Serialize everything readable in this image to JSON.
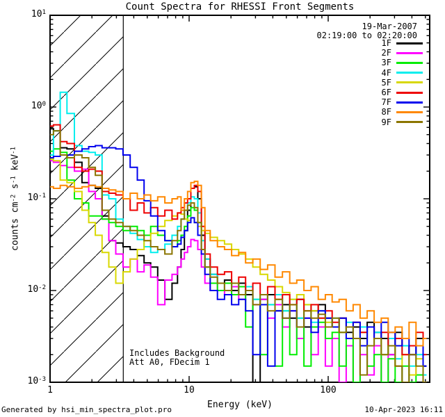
{
  "header": {
    "title": "Count Spectra for RHESSI Front Segments",
    "date": "19-Mar-2007",
    "time_range": "02:19:00 to 02:20:00"
  },
  "legend": {
    "items": [
      {
        "label": "1F",
        "color": "#000000"
      },
      {
        "label": "2F",
        "color": "#ff00ff"
      },
      {
        "label": "3F",
        "color": "#00ee00"
      },
      {
        "label": "4F",
        "color": "#00eeee"
      },
      {
        "label": "5F",
        "color": "#d8d800"
      },
      {
        "label": "6F",
        "color": "#ee0000"
      },
      {
        "label": "7F",
        "color": "#0000ee"
      },
      {
        "label": "8F",
        "color": "#ff8800"
      },
      {
        "label": "9F",
        "color": "#8b7500"
      }
    ]
  },
  "axes": {
    "x": {
      "label": "Energy (keV)",
      "tick_labels": [
        "1",
        "10",
        "100"
      ],
      "tick_values": [
        1,
        10,
        100
      ]
    },
    "y": {
      "tick_exponents": [
        1,
        0,
        -1,
        -2,
        -3
      ],
      "label_parts": {
        "prefix": "counts cm",
        "sup1": "-2",
        "mid1": " s",
        "sup2": "-1",
        "mid2": " keV",
        "sup3": "-1"
      }
    }
  },
  "annotations": {
    "line1": "Includes Background",
    "line2": "Att A0, FDecim 1"
  },
  "footer": {
    "left": "Generated by hsi_min_spectra_plot.pro",
    "right": "10-Apr-2023 16:11"
  },
  "chart_data": {
    "type": "line",
    "scale": "log-log",
    "title": "Count Spectra for RHESSI Front Segments",
    "xlabel": "Energy (keV)",
    "ylabel": "counts cm^-2 s^-1 keV^-1",
    "xlim": [
      1,
      537
    ],
    "ylim": [
      0.001,
      10
    ],
    "grid": false,
    "legend_position": "top-right",
    "hatch_region": {
      "x_min": 1,
      "x_max": 3.36
    },
    "x": [
      1.0,
      1.12,
      1.25,
      1.4,
      1.6,
      1.8,
      2.0,
      2.24,
      2.5,
      2.8,
      3.15,
      3.55,
      4.0,
      4.5,
      5.0,
      5.6,
      6.3,
      7.1,
      8.0,
      8.5,
      9.0,
      9.5,
      10.0,
      10.6,
      11.2,
      11.9,
      12.6,
      13.4,
      15,
      17,
      19,
      21.5,
      24,
      27,
      30.5,
      34.5,
      39,
      44,
      50,
      56,
      63,
      71,
      80,
      90,
      101,
      113,
      127,
      143,
      160,
      180,
      202,
      227,
      255,
      286,
      321,
      360,
      404,
      454,
      510
    ],
    "series": [
      {
        "name": "1F",
        "color": "#000000",
        "values": [
          0.58,
          0.55,
          0.36,
          0.35,
          0.25,
          0.15,
          0.14,
          0.13,
          0.065,
          0.035,
          0.033,
          0.03,
          0.028,
          0.024,
          0.02,
          0.018,
          0.013,
          0.008,
          0.012,
          0.018,
          0.028,
          0.045,
          0.075,
          0.13,
          0.135,
          0.1,
          0.04,
          0.022,
          0.015,
          0.012,
          0.013,
          0.01,
          0.012,
          0.009,
          0.001,
          0.008,
          0.009,
          0.006,
          0.007,
          0.005,
          0.008,
          0.004,
          0.006,
          0.007,
          0.005,
          0.004,
          0.005,
          0.0035,
          0.004,
          0.003,
          0.0045,
          0.0035,
          0.003,
          0.002,
          0.0035,
          0.0025,
          0.002,
          0.003,
          0.0015
        ]
      },
      {
        "name": "2F",
        "color": "#ff00ff",
        "values": [
          0.26,
          0.25,
          0.23,
          0.22,
          0.2,
          0.21,
          0.12,
          0.1,
          0.06,
          0.035,
          0.025,
          0.018,
          0.022,
          0.016,
          0.019,
          0.014,
          0.007,
          0.013,
          0.015,
          0.018,
          0.022,
          0.026,
          0.03,
          0.036,
          0.035,
          0.028,
          0.018,
          0.012,
          0.01,
          0.012,
          0.009,
          0.011,
          0.008,
          0.01,
          0.007,
          0.008,
          0.005,
          0.007,
          0.004,
          0.006,
          0.003,
          0.005,
          0.002,
          0.004,
          0.0015,
          0.003,
          0.001,
          0.0025,
          0.001,
          0.002,
          0.0012,
          0.0025,
          0.001,
          0.002,
          0.0015,
          0.001,
          0.002,
          0.0012,
          0.001
        ]
      },
      {
        "name": "3F",
        "color": "#00ee00",
        "values": [
          0.33,
          0.35,
          0.32,
          0.16,
          0.1,
          0.09,
          0.065,
          0.065,
          0.06,
          0.055,
          0.05,
          0.045,
          0.05,
          0.045,
          0.04,
          0.05,
          0.04,
          0.035,
          0.03,
          0.035,
          0.04,
          0.05,
          0.065,
          0.08,
          0.075,
          0.055,
          0.028,
          0.018,
          0.012,
          0.01,
          0.012,
          0.009,
          0.011,
          0.004,
          0.008,
          0.002,
          0.007,
          0.0015,
          0.006,
          0.002,
          0.005,
          0.0015,
          0.004,
          0.0045,
          0.003,
          0.0035,
          0.0015,
          0.003,
          0.001,
          0.0025,
          0.0015,
          0.002,
          0.001,
          0.0018,
          0.001,
          0.0015,
          0.001,
          0.0012,
          0.001
        ]
      },
      {
        "name": "4F",
        "color": "#00eeee",
        "values": [
          0.3,
          0.55,
          1.45,
          0.85,
          0.38,
          0.33,
          0.32,
          0.3,
          0.11,
          0.1,
          0.06,
          0.05,
          0.042,
          0.036,
          0.03,
          0.026,
          0.028,
          0.032,
          0.04,
          0.05,
          0.06,
          0.075,
          0.09,
          0.105,
          0.1,
          0.07,
          0.035,
          0.022,
          0.015,
          0.012,
          0.01,
          0.012,
          0.009,
          0.011,
          0.008,
          0.009,
          0.007,
          0.009,
          0.006,
          0.008,
          0.005,
          0.007,
          0.0045,
          0.006,
          0.004,
          0.005,
          0.0035,
          0.0045,
          0.003,
          0.004,
          0.0025,
          0.0035,
          0.002,
          0.003,
          0.0018,
          0.0025,
          0.0015,
          0.002,
          0.0012
        ]
      },
      {
        "name": "5F",
        "color": "#d8d800",
        "values": [
          0.27,
          0.26,
          0.16,
          0.15,
          0.12,
          0.075,
          0.055,
          0.04,
          0.026,
          0.018,
          0.012,
          0.016,
          0.022,
          0.028,
          0.035,
          0.042,
          0.05,
          0.058,
          0.065,
          0.07,
          0.068,
          0.06,
          0.058,
          0.062,
          0.055,
          0.05,
          0.045,
          0.042,
          0.038,
          0.035,
          0.032,
          0.028,
          0.025,
          0.022,
          0.018,
          0.015,
          0.013,
          0.011,
          0.0095,
          0.008,
          0.009,
          0.007,
          0.006,
          0.005,
          0.0045,
          0.004,
          0.0035,
          0.004,
          0.003,
          0.0035,
          0.0025,
          0.003,
          0.002,
          0.0025,
          0.0015,
          0.002,
          0.0012,
          0.0018,
          0.001
        ]
      },
      {
        "name": "6F",
        "color": "#ee0000",
        "values": [
          0.62,
          0.64,
          0.42,
          0.4,
          0.22,
          0.2,
          0.21,
          0.2,
          0.12,
          0.115,
          0.11,
          0.1,
          0.075,
          0.09,
          0.07,
          0.08,
          0.065,
          0.075,
          0.06,
          0.07,
          0.08,
          0.09,
          0.1,
          0.13,
          0.14,
          0.12,
          0.05,
          0.025,
          0.018,
          0.015,
          0.016,
          0.012,
          0.014,
          0.01,
          0.012,
          0.009,
          0.011,
          0.008,
          0.009,
          0.007,
          0.008,
          0.006,
          0.007,
          0.005,
          0.006,
          0.0045,
          0.005,
          0.004,
          0.0045,
          0.0035,
          0.004,
          0.003,
          0.0035,
          0.0025,
          0.003,
          0.002,
          0.0025,
          0.0035,
          0.002
        ]
      },
      {
        "name": "7F",
        "color": "#0000ee",
        "values": [
          0.28,
          0.29,
          0.3,
          0.3,
          0.33,
          0.35,
          0.37,
          0.38,
          0.36,
          0.36,
          0.35,
          0.3,
          0.22,
          0.16,
          0.095,
          0.065,
          0.045,
          0.035,
          0.03,
          0.032,
          0.038,
          0.045,
          0.055,
          0.062,
          0.055,
          0.04,
          0.025,
          0.015,
          0.01,
          0.008,
          0.009,
          0.007,
          0.008,
          0.006,
          0.002,
          0.007,
          0.0015,
          0.006,
          0.005,
          0.006,
          0.004,
          0.005,
          0.0035,
          0.006,
          0.005,
          0.004,
          0.005,
          0.003,
          0.0045,
          0.0025,
          0.004,
          0.003,
          0.0045,
          0.0035,
          0.0025,
          0.003,
          0.002,
          0.0025,
          0.0015
        ]
      },
      {
        "name": "8F",
        "color": "#ff8800",
        "values": [
          0.135,
          0.13,
          0.14,
          0.135,
          0.13,
          0.135,
          0.14,
          0.135,
          0.13,
          0.125,
          0.12,
          0.1,
          0.115,
          0.1,
          0.11,
          0.095,
          0.105,
          0.09,
          0.1,
          0.105,
          0.075,
          0.1,
          0.12,
          0.15,
          0.155,
          0.14,
          0.08,
          0.045,
          0.035,
          0.03,
          0.028,
          0.024,
          0.026,
          0.02,
          0.022,
          0.017,
          0.019,
          0.014,
          0.016,
          0.012,
          0.013,
          0.01,
          0.011,
          0.008,
          0.009,
          0.0075,
          0.008,
          0.006,
          0.007,
          0.005,
          0.006,
          0.0045,
          0.005,
          0.0035,
          0.004,
          0.003,
          0.0045,
          0.0025,
          0.003
        ]
      },
      {
        "name": "9F",
        "color": "#8b7500",
        "values": [
          0.5,
          0.55,
          0.3,
          0.28,
          0.3,
          0.28,
          0.22,
          0.18,
          0.075,
          0.06,
          0.055,
          0.05,
          0.045,
          0.04,
          0.035,
          0.03,
          0.028,
          0.025,
          0.035,
          0.045,
          0.06,
          0.075,
          0.085,
          0.09,
          0.08,
          0.055,
          0.028,
          0.018,
          0.014,
          0.012,
          0.01,
          0.012,
          0.009,
          0.01,
          0.007,
          0.009,
          0.006,
          0.008,
          0.005,
          0.007,
          0.004,
          0.006,
          0.005,
          0.0055,
          0.004,
          0.005,
          0.0035,
          0.004,
          0.003,
          0.0012,
          0.0025,
          0.003,
          0.002,
          0.0025,
          0.0015,
          0.001,
          0.002,
          0.0015,
          0.001
        ]
      }
    ]
  }
}
